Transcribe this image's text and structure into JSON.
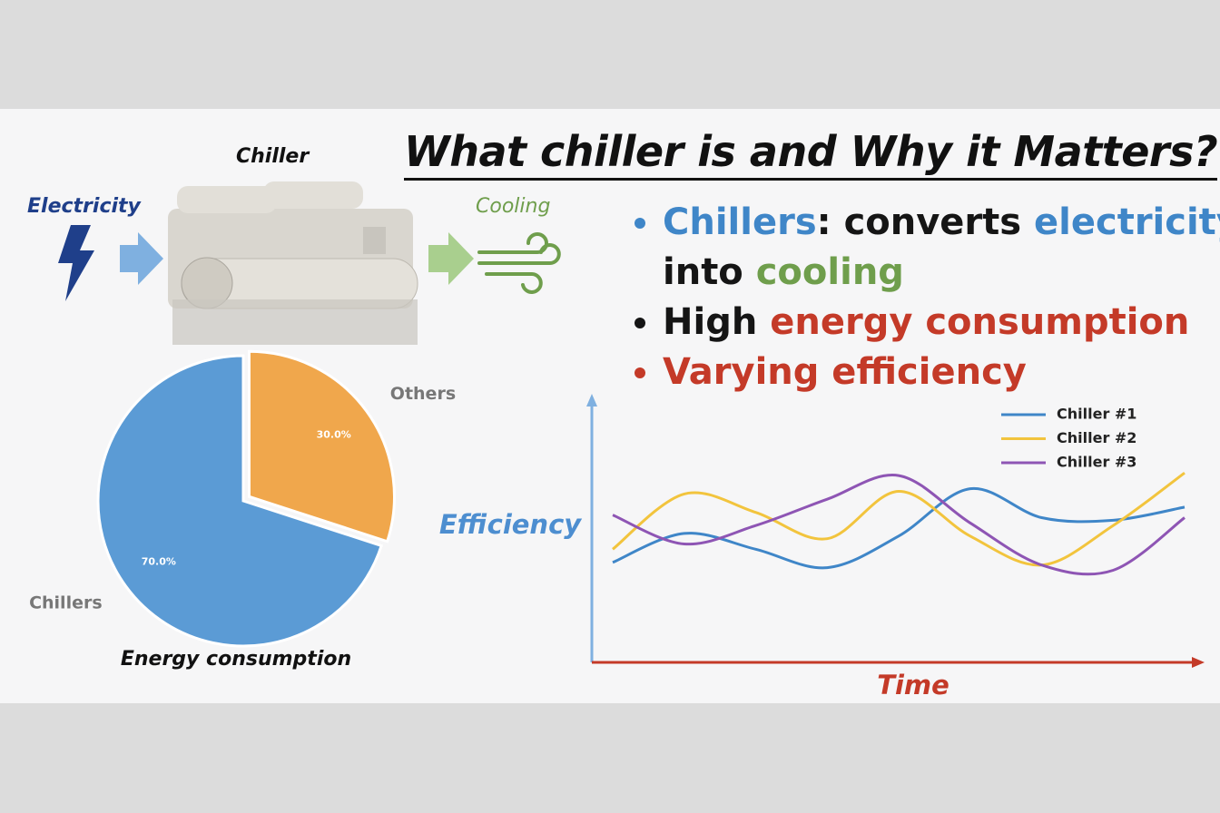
{
  "slide": {
    "title": "What chiller is and Why it Matters?",
    "chiller_label": "Chiller",
    "input_label": "Electricity",
    "output_label": "Cooling",
    "bullets": [
      [
        "Chillers",
        ": converts ",
        "electricity",
        " into ",
        "cooling"
      ],
      [
        "High ",
        "energy consumption"
      ],
      [
        "Varying efficiency"
      ]
    ]
  },
  "chart_data": [
    {
      "type": "pie",
      "title": "Energy consumption",
      "categories": [
        "Chillers",
        "Others"
      ],
      "values": [
        70,
        30
      ],
      "value_labels": [
        "70.0%",
        "30.0%"
      ],
      "colors": [
        "#5b9bd5",
        "#f0a74c"
      ]
    },
    {
      "type": "line",
      "ylabel": "Efficiency",
      "xlabel": "Time",
      "categories": [
        null,
        null,
        null,
        null,
        null,
        null,
        null,
        null,
        null
      ],
      "ylim": [
        0,
        10
      ],
      "legend": "upper right",
      "series": [
        {
          "name": "Chiller #1",
          "color": "#3f86c8",
          "values": [
            3.8,
            4.9,
            4.3,
            3.6,
            4.8,
            6.6,
            5.5,
            5.4,
            5.9
          ]
        },
        {
          "name": "Chiller #2",
          "color": "#f2c43d",
          "values": [
            4.3,
            6.4,
            5.7,
            4.7,
            6.5,
            4.8,
            3.7,
            5.2,
            7.2
          ]
        },
        {
          "name": "Chiller #3",
          "color": "#8e55b4",
          "values": [
            5.6,
            4.5,
            5.2,
            6.2,
            7.1,
            5.3,
            3.7,
            3.5,
            5.5
          ]
        }
      ]
    }
  ]
}
